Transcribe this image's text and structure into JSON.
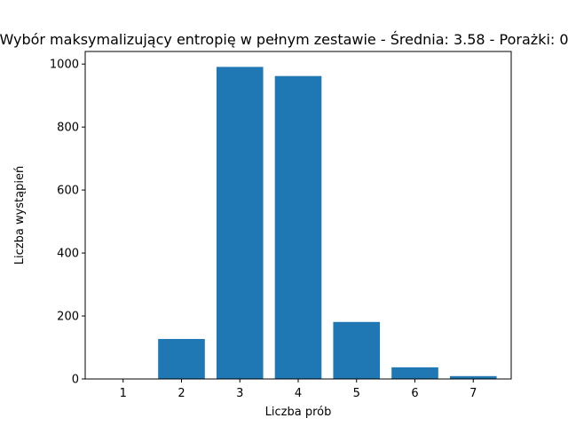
{
  "chart_data": {
    "type": "bar",
    "title": "Wybór maksymalizujący entropię w pełnym zestawie - Średnia: 3.58 - Porażki: 0",
    "xlabel": "Liczba prób",
    "ylabel": "Liczba wystąpień",
    "categories": [
      "1",
      "2",
      "3",
      "4",
      "5",
      "6",
      "7"
    ],
    "values": [
      0,
      127,
      991,
      962,
      181,
      37,
      9
    ],
    "ylim": [
      0,
      1040
    ],
    "yticks": [
      0,
      200,
      400,
      600,
      800,
      1000
    ],
    "xlim": [
      0.35,
      7.65
    ],
    "grid": false,
    "bar_color": "#1f77b4"
  }
}
